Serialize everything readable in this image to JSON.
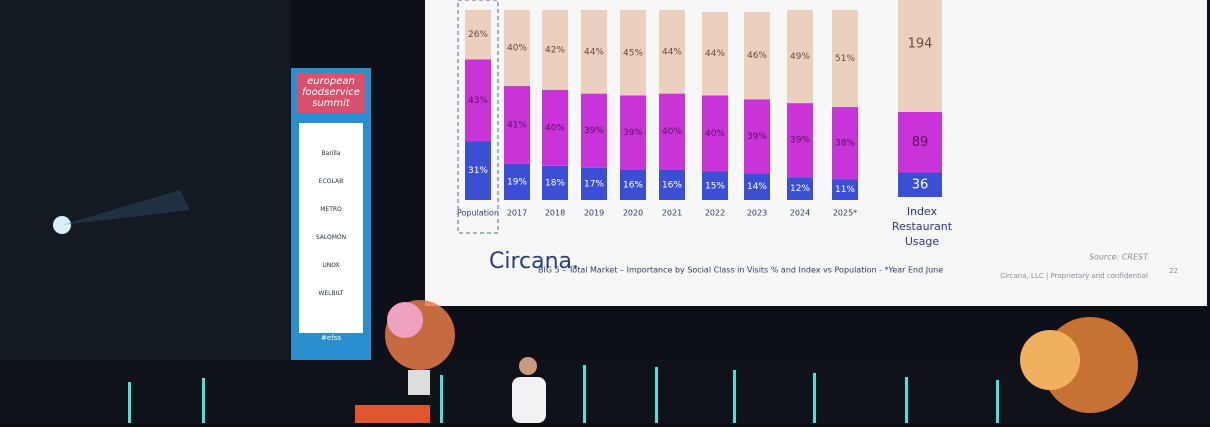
{
  "screen": {
    "logo": "Circana.",
    "caption": "BIG 5 – Total Market – Importance by Social Class in Visits % and Index vs Population - *Year End June",
    "source": "Source: CREST",
    "footer": "Circana, LLC | Proprietary and confidential",
    "page_number": "22",
    "chart_data": {
      "type": "bar",
      "stacked": true,
      "categories": [
        "Population",
        "2017",
        "2018",
        "2019",
        "2020",
        "2021",
        "2022",
        "2023",
        "2024",
        "2025*"
      ],
      "series": [
        {
          "color": "#3b4fd4",
          "values": [
            31,
            19,
            18,
            17,
            16,
            16,
            15,
            14,
            12,
            11
          ],
          "value_labels": [
            "31%",
            "19%",
            "18%",
            "17%",
            "16%",
            "16%",
            "15%",
            "14%",
            "12%",
            "11%"
          ]
        },
        {
          "color": "#c934d8",
          "values": [
            43,
            41,
            40,
            39,
            39,
            40,
            40,
            39,
            39,
            38
          ],
          "value_labels": [
            "43%",
            "41%",
            "40%",
            "39%",
            "39%",
            "40%",
            "40%",
            "39%",
            "39%",
            "38%"
          ]
        },
        {
          "color": "#ebd0c0",
          "values": [
            26,
            40,
            42,
            44,
            45,
            44,
            44,
            46,
            49,
            51
          ],
          "value_labels": [
            "26%",
            "40%",
            "42%",
            "44%",
            "45%",
            "44%",
            "44%",
            "46%",
            "49%",
            "51%"
          ]
        }
      ],
      "index": {
        "label": "Index Restaurant Usage",
        "values": [
          36,
          89,
          194
        ]
      }
    }
  },
  "banner": {
    "title": "european foodservice summit",
    "hashtag": "#efss",
    "sponsors": [
      "Barilla",
      "ECOLAB",
      "METRO",
      "SALOMON",
      "UNOX",
      "WELBILT"
    ]
  }
}
